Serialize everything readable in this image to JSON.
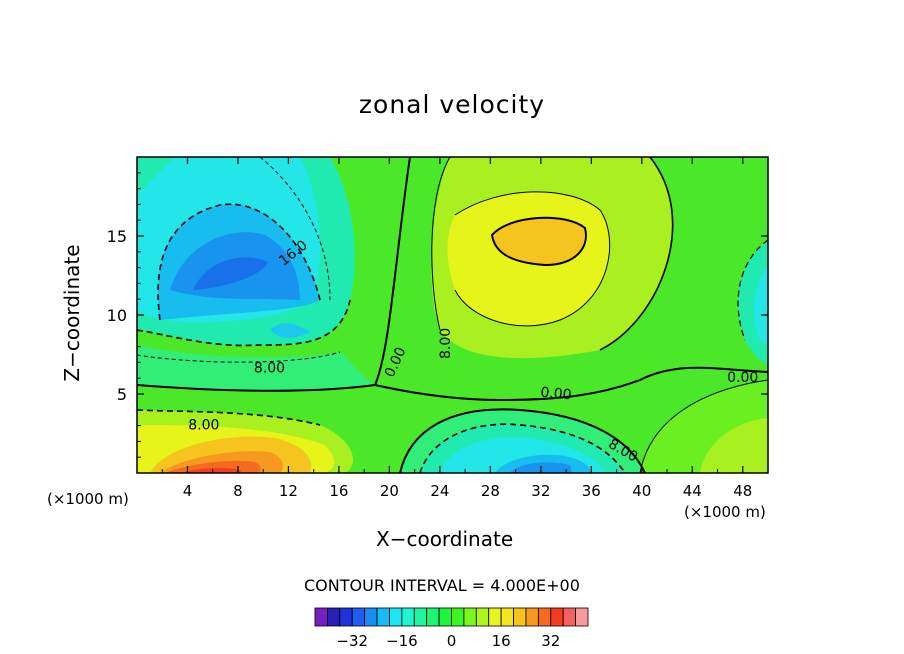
{
  "chart_data": {
    "type": "contour",
    "title": "zonal velocity",
    "xlabel": "X−coordinate",
    "ylabel": "Z−coordinate",
    "x_unit_left": "(×1000 m)",
    "x_unit_right": "(×1000 m)",
    "contour_interval_text": "CONTOUR INTERVAL = 4.000E+00",
    "xlim": [
      0,
      50
    ],
    "ylim": [
      0,
      20
    ],
    "x_ticks": [
      4,
      8,
      12,
      16,
      20,
      24,
      28,
      32,
      36,
      40,
      44,
      48
    ],
    "y_ticks": [
      5,
      10,
      15
    ],
    "contour_labels": [
      {
        "text": "16.0",
        "x": 12.4,
        "y": 13.9,
        "angle": -38
      },
      {
        "text": "8.00",
        "x": 10.5,
        "y": 6.6,
        "angle": 0
      },
      {
        "text": "0.00",
        "x": 20.5,
        "y": 7.0,
        "angle": -65
      },
      {
        "text": "8.00",
        "x": 24.5,
        "y": 8.2,
        "angle": -90
      },
      {
        "text": "0.00",
        "x": 33.2,
        "y": 5.0,
        "angle": 5
      },
      {
        "text": "0.00",
        "x": 48.0,
        "y": 6.0,
        "angle": 0
      },
      {
        "text": "8.00",
        "x": 5.3,
        "y": 3.0,
        "angle": 0
      },
      {
        "text": "8.00",
        "x": 38.5,
        "y": 1.4,
        "angle": 30
      }
    ],
    "colorbar": {
      "levels": [
        -40,
        -36,
        -32,
        -28,
        -24,
        -20,
        -16,
        -12,
        -8,
        -4,
        0,
        4,
        8,
        12,
        16,
        20,
        24,
        28,
        32,
        36,
        40
      ],
      "colors": [
        "#7a1fbf",
        "#2a1fb5",
        "#1f32dc",
        "#1f5cf0",
        "#1a8cf5",
        "#19b9f7",
        "#1ce6f2",
        "#1ff5cf",
        "#1ff5a0",
        "#1ff570",
        "#1ff53c",
        "#3ff51f",
        "#7af51f",
        "#b0f51f",
        "#e6f51f",
        "#f5e61f",
        "#f5c41f",
        "#f59a1f",
        "#f56a1f",
        "#f53c1f",
        "#f56060",
        "#f79a9a"
      ],
      "tick_labels": [
        "−32",
        "−16",
        "0",
        "16",
        "32"
      ],
      "tick_values": [
        -32,
        -16,
        0,
        16,
        32
      ]
    }
  }
}
